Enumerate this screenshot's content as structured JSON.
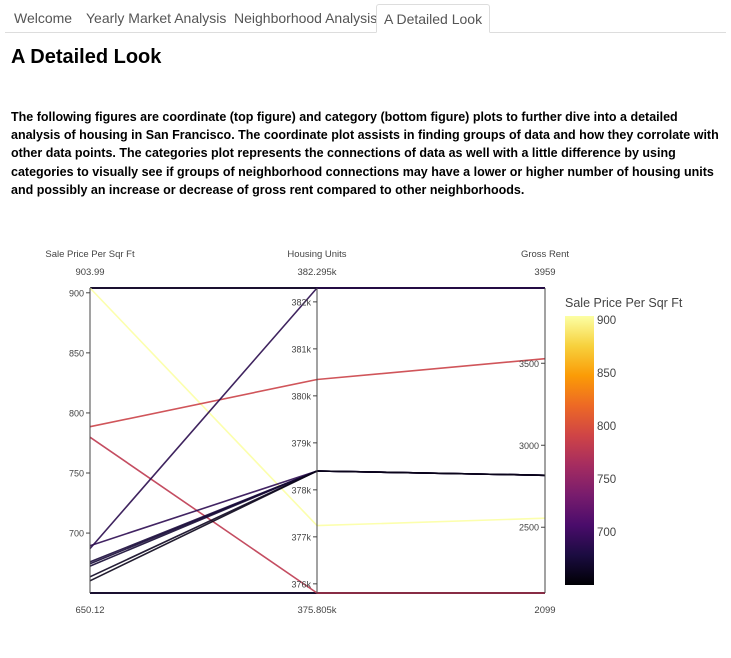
{
  "tabs": [
    {
      "label": "Welcome",
      "active": false
    },
    {
      "label": "Yearly Market Analysis",
      "active": false
    },
    {
      "label": "Neighborhood Analysis",
      "active": false
    },
    {
      "label": "A Detailed Look",
      "active": true
    }
  ],
  "page": {
    "title": "A Detailed Look",
    "description": "The following figures are coordinate (top figure) and category (bottom figure) plots to further dive into a detailed analysis of housing in San Francisco. The coordinate plot assists in finding groups of data and how they corrolate with other data points. The categories plot represents the connections of data as well with a little difference by using categories to visually see if groups of neighborhood connections may have a lower or higher number of housing units and possibly an increase or decrease of gross rent compared to other neighborhoods."
  },
  "chart_data": {
    "type": "parallel_coordinates",
    "dimensions": [
      {
        "label": "Sale Price Per Sqr Ft",
        "range": [
          650.12,
          903.99
        ],
        "range_labels": [
          "650.12",
          "903.99"
        ],
        "ticks": [
          {
            "v": 700,
            "t": "700"
          },
          {
            "v": 750,
            "t": "750"
          },
          {
            "v": 800,
            "t": "800"
          },
          {
            "v": 850,
            "t": "850"
          },
          {
            "v": 900,
            "t": "900"
          }
        ]
      },
      {
        "label": "Housing Units",
        "range": [
          375805,
          382295
        ],
        "range_labels": [
          "375.805k",
          "382.295k"
        ],
        "ticks": [
          {
            "v": 376000,
            "t": "376k"
          },
          {
            "v": 377000,
            "t": "377k"
          },
          {
            "v": 378000,
            "t": "378k"
          },
          {
            "v": 379000,
            "t": "379k"
          },
          {
            "v": 380000,
            "t": "380k"
          },
          {
            "v": 381000,
            "t": "381k"
          },
          {
            "v": 382000,
            "t": "382k"
          }
        ]
      },
      {
        "label": "Gross Rent",
        "range": [
          2099,
          3959
        ],
        "range_labels": [
          "2099",
          "3959"
        ],
        "ticks": [
          {
            "v": 2500,
            "t": "2500"
          },
          {
            "v": 3000,
            "t": "3000"
          },
          {
            "v": 3500,
            "t": "3500"
          }
        ]
      }
    ],
    "lines": [
      [
        903.99,
        377239,
        2555
      ],
      [
        788.5,
        380348,
        3528
      ],
      [
        779.8,
        375805,
        2099
      ],
      [
        687.1,
        382295,
        3959
      ],
      [
        689.5,
        378401,
        2817
      ],
      [
        676.0,
        378401,
        2817
      ],
      [
        674.5,
        378401,
        2817
      ],
      [
        672.5,
        378401,
        2817
      ],
      [
        663.6,
        378401,
        2817
      ],
      [
        660.3,
        378401,
        2817
      ]
    ],
    "colorbar": {
      "title": "Sale Price Per Sqr Ft",
      "range": [
        650.12,
        903.99
      ],
      "ticks": [
        {
          "v": 700,
          "t": "700"
        },
        {
          "v": 750,
          "t": "750"
        },
        {
          "v": 800,
          "t": "800"
        },
        {
          "v": 850,
          "t": "850"
        },
        {
          "v": 900,
          "t": "900"
        }
      ],
      "colorscale": [
        "#000004",
        "#1b0c41",
        "#4a0c6b",
        "#781c6d",
        "#a52c60",
        "#cf4446",
        "#ed6925",
        "#fb9b06",
        "#f7d13d",
        "#fcffa4"
      ]
    }
  }
}
